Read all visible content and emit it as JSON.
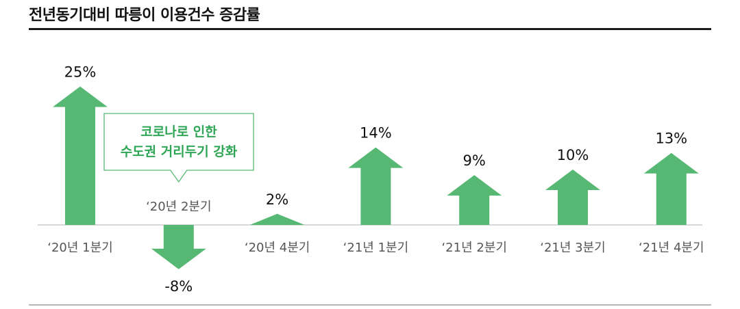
{
  "chart_data": {
    "type": "bar",
    "title": "전년동기대비 따릉이 이용건수 증감률",
    "categories": [
      "‘20년 1분기",
      "‘20년 2분기",
      "‘20년 4분기",
      "‘21년 1분기",
      "‘21년 2분기",
      "‘21년 3분기",
      "‘21년 4분기"
    ],
    "values": [
      25,
      -8,
      2,
      14,
      9,
      10,
      13
    ],
    "value_labels": [
      "25%",
      "-8%",
      "2%",
      "14%",
      "9%",
      "10%",
      "13%"
    ],
    "unit": "%",
    "annotation": {
      "lines": [
        "코로나로 인한",
        "수도권 거리두기 강화"
      ],
      "category": "‘20년 2분기"
    },
    "colors": {
      "arrow": "#57b874",
      "annotation_text": "#2fa556",
      "annotation_border": "#57b874",
      "baseline": "#cccccc"
    },
    "grid": false,
    "legend": "none"
  }
}
